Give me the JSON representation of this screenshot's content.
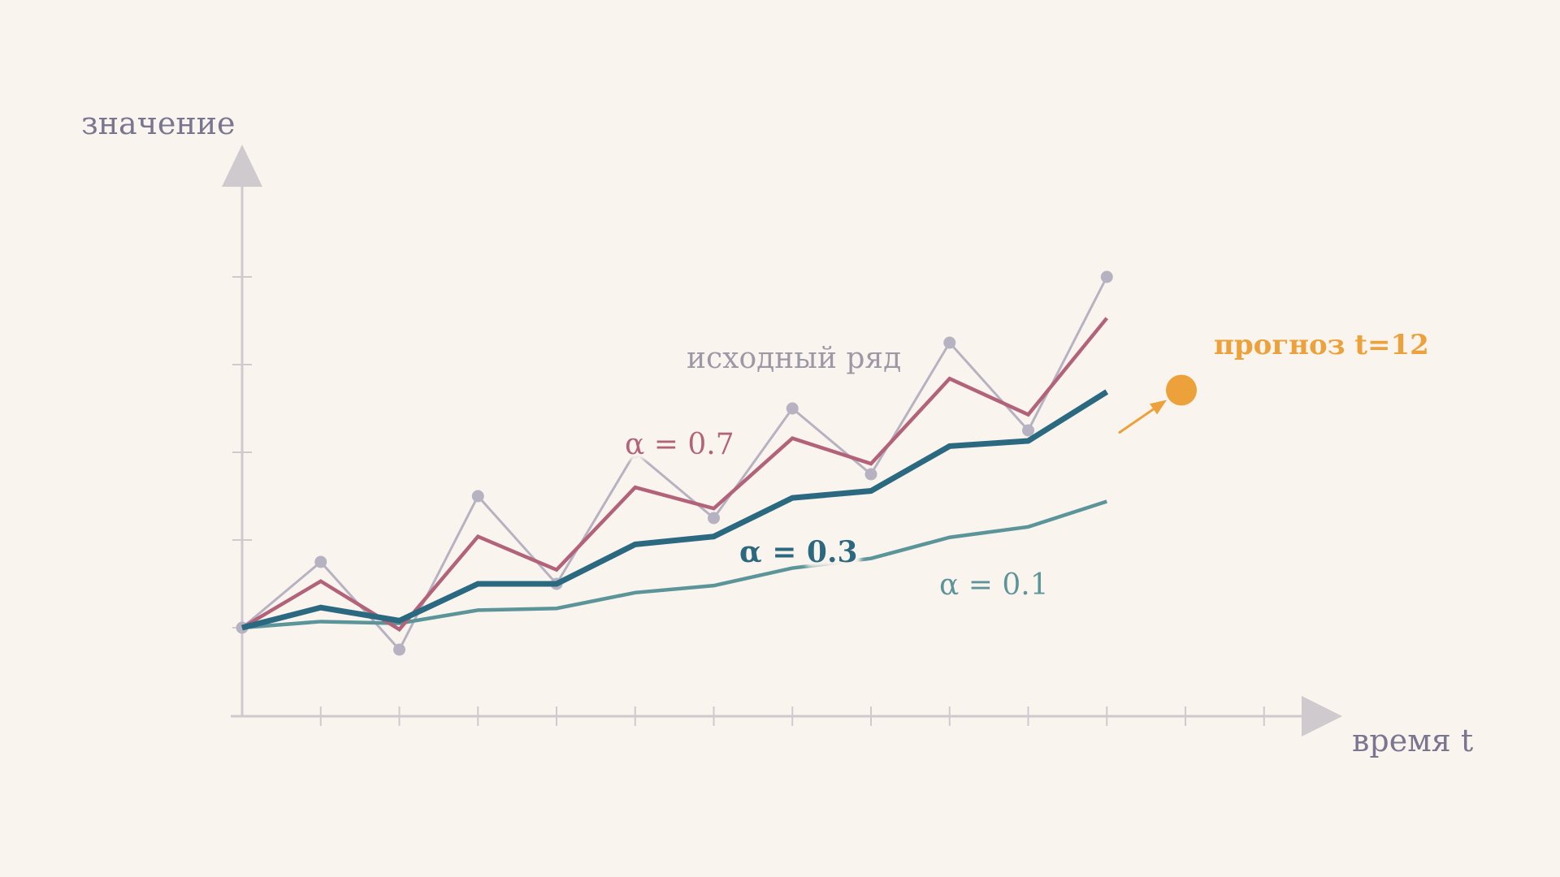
{
  "chart_data": {
    "type": "line",
    "title": "",
    "xlabel": "время t",
    "ylabel": "значение",
    "x": [
      0,
      1,
      2,
      3,
      4,
      5,
      6,
      7,
      8,
      9,
      10,
      11
    ],
    "xlim": [
      0,
      13
    ],
    "ylim": [
      -1,
      5
    ],
    "grid": false,
    "series": [
      {
        "name": "исходный ряд",
        "color": "#b7b2c1",
        "markers": true,
        "values": [
          0.0,
          0.75,
          -0.25,
          1.5,
          0.5,
          2.0,
          1.25,
          2.5,
          1.75,
          3.25,
          2.25,
          4.0
        ]
      },
      {
        "name": "α = 0.7",
        "color": "#b2637a",
        "markers": false,
        "values": [
          0.0,
          0.53,
          -0.02,
          1.04,
          0.66,
          1.6,
          1.36,
          2.16,
          1.87,
          2.84,
          2.43,
          3.53
        ]
      },
      {
        "name": "α = 0.3",
        "color": "#2a6980",
        "markers": false,
        "values": [
          0.0,
          0.23,
          0.08,
          0.5,
          0.5,
          0.95,
          1.04,
          1.48,
          1.56,
          2.07,
          2.13,
          2.69
        ]
      },
      {
        "name": "α = 0.1",
        "color": "#5b9599",
        "markers": false,
        "values": [
          0.0,
          0.07,
          0.05,
          0.2,
          0.22,
          0.4,
          0.48,
          0.68,
          0.79,
          1.03,
          1.15,
          1.44
        ]
      }
    ],
    "forecast": {
      "label": "прогноз t=12",
      "x": 12,
      "value": 2.69,
      "color": "#eca13a"
    }
  }
}
